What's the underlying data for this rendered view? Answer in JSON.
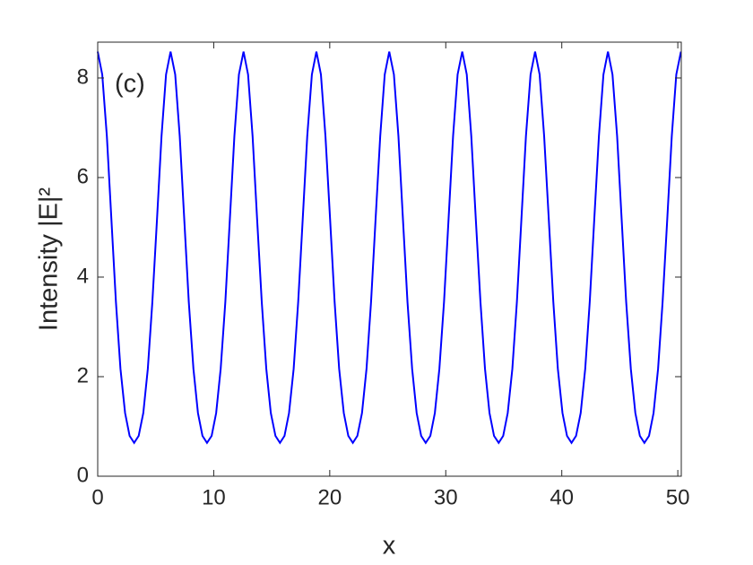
{
  "chart_data": {
    "type": "line",
    "annotation": "(c)",
    "xlabel": "x",
    "ylabel": "Intensity |E|²",
    "xlim": [
      0,
      50.3
    ],
    "ylim": [
      0,
      8.72
    ],
    "xticks": [
      0,
      10,
      20,
      30,
      40,
      50
    ],
    "yticks": [
      0,
      2,
      4,
      6,
      8
    ],
    "x": [
      0,
      0.39,
      0.79,
      1.18,
      1.57,
      1.96,
      2.36,
      2.75,
      3.14,
      3.53,
      3.93,
      4.32,
      4.71,
      5.11,
      5.5,
      5.89,
      6.28,
      6.68,
      7.07,
      7.46,
      7.85,
      8.25,
      8.64,
      9.03,
      9.42,
      9.82,
      10.21,
      10.6,
      11.0,
      11.39,
      11.78,
      12.17,
      12.57,
      12.96,
      13.35,
      13.74,
      14.14,
      14.53,
      14.92,
      15.32,
      15.71,
      16.1,
      16.49,
      16.89,
      17.28,
      17.67,
      18.06,
      18.46,
      18.85,
      19.24,
      19.63,
      20.03,
      20.42,
      20.81,
      21.21,
      21.6,
      21.99,
      22.38,
      22.78,
      23.17,
      23.56,
      23.95,
      24.35,
      24.74,
      25.13,
      25.53,
      25.92,
      26.31,
      26.7,
      27.1,
      27.49,
      27.88,
      28.27,
      28.67,
      29.06,
      29.45,
      29.85,
      30.24,
      30.63,
      31.02,
      31.42,
      31.81,
      32.2,
      32.59,
      32.99,
      33.38,
      33.77,
      34.16,
      34.56,
      34.95,
      35.34,
      35.74,
      36.13,
      36.52,
      36.91,
      37.31,
      37.7,
      38.09,
      38.48,
      38.88,
      39.27,
      39.66,
      40.06,
      40.45,
      40.84,
      41.23,
      41.63,
      42.02,
      42.41,
      42.8,
      43.2,
      43.59,
      43.98,
      44.37,
      44.77,
      45.16,
      45.55,
      45.95,
      46.34,
      46.73,
      47.12,
      47.52,
      47.91,
      48.3,
      48.69,
      49.09,
      49.48,
      49.87,
      50.27
    ],
    "series": [
      {
        "color": "#0000ff",
        "values": [
          8.53,
          8.07,
          6.83,
          5.16,
          3.5,
          2.16,
          1.27,
          0.81,
          0.67,
          0.81,
          1.27,
          2.16,
          3.5,
          5.16,
          6.83,
          8.07,
          8.53,
          8.07,
          6.83,
          5.16,
          3.5,
          2.16,
          1.27,
          0.81,
          0.67,
          0.81,
          1.27,
          2.16,
          3.5,
          5.16,
          6.83,
          8.07,
          8.53,
          8.07,
          6.83,
          5.16,
          3.5,
          2.16,
          1.27,
          0.81,
          0.67,
          0.81,
          1.27,
          2.16,
          3.5,
          5.16,
          6.83,
          8.07,
          8.53,
          8.07,
          6.83,
          5.16,
          3.5,
          2.16,
          1.27,
          0.81,
          0.67,
          0.81,
          1.27,
          2.16,
          3.5,
          5.16,
          6.83,
          8.07,
          8.53,
          8.07,
          6.83,
          5.16,
          3.5,
          2.16,
          1.27,
          0.81,
          0.67,
          0.81,
          1.27,
          2.16,
          3.5,
          5.16,
          6.83,
          8.07,
          8.53,
          8.07,
          6.83,
          5.16,
          3.5,
          2.16,
          1.27,
          0.81,
          0.67,
          0.81,
          1.27,
          2.16,
          3.5,
          5.16,
          6.83,
          8.07,
          8.53,
          8.07,
          6.83,
          5.16,
          3.5,
          2.16,
          1.27,
          0.81,
          0.67,
          0.81,
          1.27,
          2.16,
          3.5,
          5.16,
          6.83,
          8.07,
          8.53,
          8.07,
          6.83,
          5.16,
          3.5,
          2.16,
          1.27,
          0.81,
          0.67,
          0.81,
          1.27,
          2.16,
          3.5,
          5.16,
          6.83,
          8.07,
          8.53
        ]
      }
    ]
  }
}
